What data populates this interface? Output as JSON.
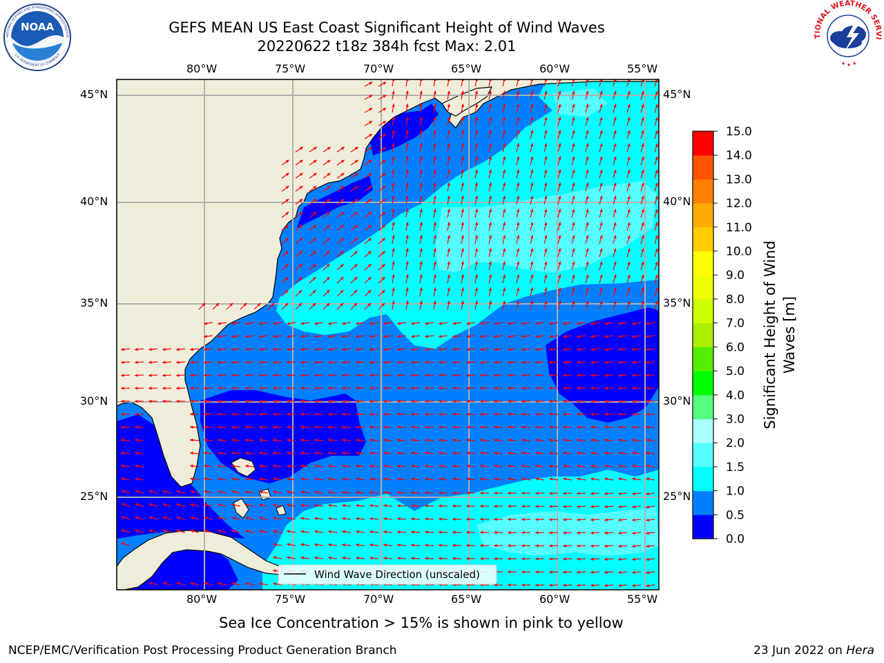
{
  "title": {
    "line1": "GEFS MEAN US East Coast Significant Height of Wind Waves",
    "line2": "20220622 t18z 384h fcst   Max: 2.01"
  },
  "logos": {
    "left": "NOAA",
    "left_ring_top": "NATIONAL OCEANIC AND ATMOSPHERIC ADMINISTRATION",
    "left_ring_bottom": "U.S. DEPARTMENT OF COMMERCE",
    "right_ring": "NATIONAL WEATHER SERVICE"
  },
  "map": {
    "lon_labels": [
      "80°W",
      "75°W",
      "70°W",
      "65°W",
      "60°W",
      "55°W"
    ],
    "lat_labels": [
      "45°N",
      "40°N",
      "35°N",
      "30°N",
      "25°N"
    ],
    "legend_label": "Wind Wave Direction (unscaled)",
    "arrow_color": "#ff0000",
    "land_color": "#efedd9",
    "extent": {
      "lon_min": -85,
      "lon_max": -54.5,
      "lat_min": 20.5,
      "lat_max": 45.8
    }
  },
  "colorbar": {
    "label": "Significant Height of Wind Waves [m]",
    "label_line1": "Significant Height of Wind",
    "label_line2": "Waves [m]",
    "ticks": [
      "15.0",
      "14.0",
      "13.0",
      "12.0",
      "11.0",
      "10.0",
      "9.0",
      "8.0",
      "7.0",
      "6.0",
      "5.0",
      "4.0",
      "3.0",
      "2.0",
      "1.5",
      "1.0",
      "0.5",
      "0.0"
    ],
    "colors": [
      "#0000ff",
      "#0080ff",
      "#00ffff",
      "#55ffff",
      "#aaffff",
      "#55ff80",
      "#00ff00",
      "#55ee00",
      "#aaee00",
      "#ccff00",
      "#eeff00",
      "#ffff00",
      "#ffcc00",
      "#ffaa00",
      "#ff8000",
      "#ff5500",
      "#ff0000"
    ]
  },
  "note": "Sea Ice Concentration > 15% is shown in pink to yellow",
  "footer": {
    "left": "NCEP/EMC/Verification Post Processing Product Generation Branch",
    "right_date": "23 Jun 2022 on ",
    "right_host": "Hera"
  }
}
